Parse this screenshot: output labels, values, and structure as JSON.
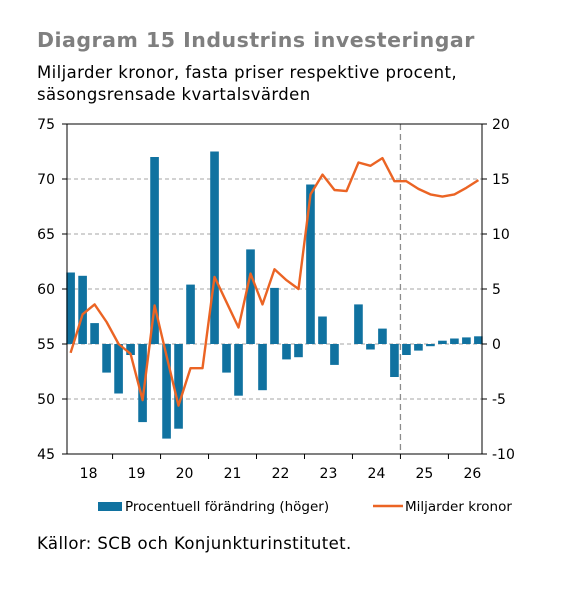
{
  "header": {
    "title": "Diagram 15 Industrins investeringar",
    "subtitle": "Miljarder kronor, fasta priser respektive procent, säsongsrensade kvartalsvärden"
  },
  "footer": {
    "source": "Källor: SCB och Konjunkturinstitutet."
  },
  "colors": {
    "bar": "#1072a0",
    "line": "#eb6424",
    "grid": "#a6a6a6",
    "forecast_line": "#8c8c8c"
  },
  "chart_data": {
    "type": "bar+line",
    "x_tick_labels": [
      "18",
      "19",
      "20",
      "21",
      "22",
      "23",
      "24",
      "25",
      "26"
    ],
    "quarters_per_year": 4,
    "start_year": 2018,
    "forecast_from": "25",
    "left_axis": {
      "ticks": [
        "45",
        "50",
        "55",
        "60",
        "65",
        "70",
        "75"
      ],
      "ylim": [
        45,
        75
      ]
    },
    "right_axis": {
      "ticks": [
        "-10",
        "-5",
        "0",
        "5",
        "10",
        "15",
        "20"
      ],
      "ylim": [
        -10,
        20
      ]
    },
    "legend": {
      "placement": "bottom",
      "entries": [
        "Procentuell förändring (höger)",
        "Miljarder kronor"
      ]
    },
    "series": [
      {
        "name": "Procentuell förändring (höger)",
        "axis": "right",
        "style": "bar",
        "values": [
          6.5,
          6.2,
          1.9,
          -2.6,
          -4.5,
          -1.0,
          -7.1,
          17.0,
          -8.6,
          -7.7,
          5.4,
          0,
          17.5,
          -2.6,
          -4.7,
          8.6,
          -4.2,
          5.1,
          -1.4,
          -1.2,
          14.5,
          2.5,
          -1.9,
          0,
          3.6,
          -0.5,
          1.4,
          -3.0,
          -1.0,
          -0.6,
          -0.2,
          0.3,
          0.5,
          0.6,
          0.7
        ]
      },
      {
        "name": "Miljarder kronor",
        "axis": "left",
        "style": "line",
        "values": [
          54.2,
          57.7,
          58.6,
          57.0,
          55.0,
          54.1,
          49.9,
          58.5,
          53.9,
          49.4,
          52.8,
          52.8,
          61.1,
          58.8,
          56.5,
          61.4,
          58.6,
          61.8,
          60.8,
          60.0,
          68.6,
          70.4,
          69.0,
          68.9,
          71.5,
          71.2,
          71.9,
          69.8,
          69.8,
          69.1,
          68.6,
          68.4,
          68.6,
          69.2,
          69.9
        ]
      }
    ]
  }
}
